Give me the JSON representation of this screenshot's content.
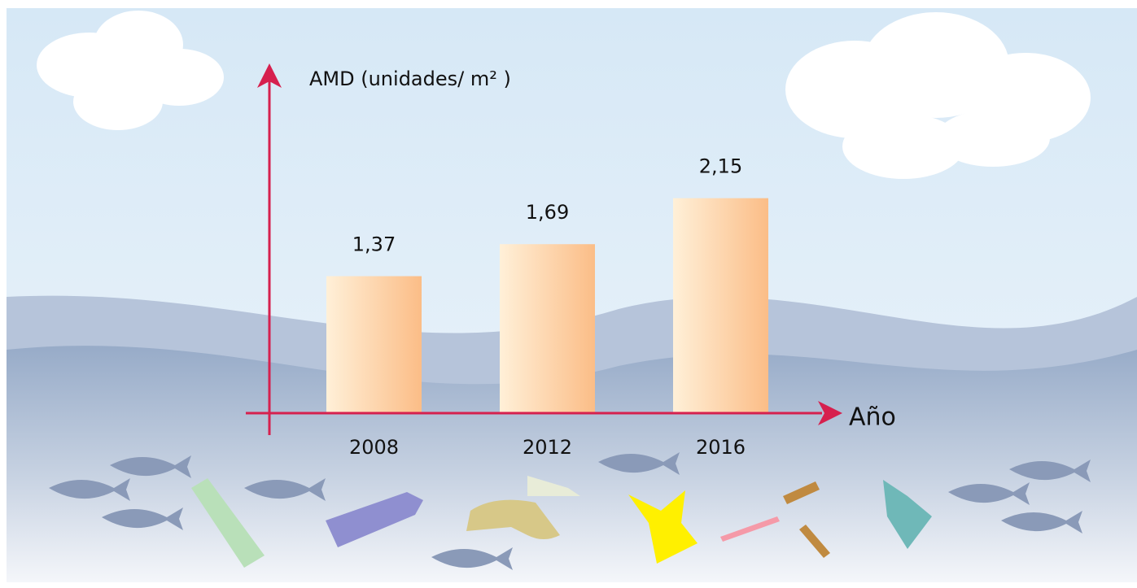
{
  "chart_data": {
    "type": "bar",
    "y_label": "AMD (unidades/ m² )",
    "x_label": "Año",
    "categories": [
      "2008",
      "2012",
      "2016"
    ],
    "values": [
      1.37,
      1.69,
      2.15
    ],
    "value_labels": [
      "1,37",
      "1,69",
      "2,15"
    ],
    "ylim": [
      0,
      3.4
    ],
    "color": "#fbbd87"
  }
}
